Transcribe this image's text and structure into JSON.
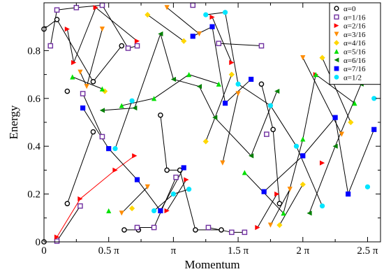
{
  "chart_data": {
    "type": "scatter",
    "title": "",
    "xlabel": "Momentum",
    "ylabel": "Energy",
    "xlim": [
      0,
      2.6
    ],
    "ylim": [
      0,
      1.0
    ],
    "x_unit": "pi",
    "x_ticks": [
      0,
      0.5,
      1,
      1.5,
      2,
      2.5
    ],
    "x_tick_labels": [
      "0",
      "0.5 π",
      "π",
      "1.5 π",
      "2 π",
      "2.5 π"
    ],
    "y_ticks": [
      0,
      0.2,
      0.4,
      0.6,
      0.8
    ],
    "y_tick_labels": [
      "0",
      "0.2",
      "0.4",
      "0.6",
      "0.8"
    ],
    "grid": false,
    "legend_position": "top-right",
    "series": [
      {
        "name": "α=0",
        "marker": "circle-open",
        "color": "#000000",
        "points": [
          [
            0,
            0
          ],
          [
            0,
            0.89
          ],
          [
            0.1,
            0.93
          ],
          [
            0.38,
            0.67
          ],
          [
            0.6,
            0.82
          ],
          [
            0.18,
            0.63
          ],
          [
            0.18,
            0.16
          ],
          [
            0.38,
            0.46
          ],
          [
            0.62,
            0.05
          ],
          [
            0.73,
            0.05
          ],
          [
            0.9,
            0.53
          ],
          [
            0.95,
            0.3
          ],
          [
            1.05,
            0.3
          ],
          [
            1.17,
            0.05
          ],
          [
            1.37,
            0.05
          ],
          [
            1.68,
            0.66
          ],
          [
            1.77,
            0.47
          ],
          [
            1.82,
            0.16
          ]
        ]
      },
      {
        "name": "α=1/16",
        "marker": "square-open",
        "color": "#7030a0",
        "points": [
          [
            0.05,
            0.82
          ],
          [
            0.1,
            0.97
          ],
          [
            0.25,
            0.98
          ],
          [
            0.45,
            0.99
          ],
          [
            0.65,
            0.81
          ],
          [
            0.72,
            0.82
          ],
          [
            0.3,
            0.62
          ],
          [
            0.45,
            0.44
          ],
          [
            0.1,
            0.003
          ],
          [
            0.28,
            0.15
          ],
          [
            0.72,
            0.06
          ],
          [
            0.85,
            0.06
          ],
          [
            1.02,
            0.27
          ],
          [
            1.15,
            0.99
          ],
          [
            1.27,
            0.06
          ],
          [
            1.45,
            0.04
          ],
          [
            1.55,
            0.04
          ],
          [
            1.72,
            0.45
          ],
          [
            1.68,
            0.82
          ],
          [
            1.35,
            0.83
          ]
        ]
      },
      {
        "name": "α=2/16",
        "marker": "triangle-right",
        "color": "#ff0000",
        "points": [
          [
            0.1,
            0.02
          ],
          [
            0.28,
            0.18
          ],
          [
            0.55,
            0.3
          ],
          [
            0.7,
            0.36
          ],
          [
            0.18,
            0.89
          ],
          [
            0.23,
            0.75
          ],
          [
            0.4,
            0.98
          ],
          [
            0.72,
            0.84
          ],
          [
            0.95,
            0.13
          ],
          [
            1.1,
            0.26
          ],
          [
            1.3,
            0.94
          ],
          [
            1.45,
            0.75
          ],
          [
            1.65,
            0.06
          ],
          [
            1.8,
            0.2
          ],
          [
            2.1,
            0.7
          ],
          [
            2.15,
            0.33
          ]
        ]
      },
      {
        "name": "α=3/16",
        "marker": "triangle-down",
        "color": "#ff8c00",
        "points": [
          [
            0.28,
            0.71
          ],
          [
            0.33,
            0.65
          ],
          [
            0.45,
            0.89
          ],
          [
            0.6,
            0.12
          ],
          [
            0.8,
            0.23
          ],
          [
            0.95,
            0.98
          ],
          [
            1.2,
            0.87
          ],
          [
            1.38,
            0.33
          ],
          [
            1.5,
            0.62
          ],
          [
            1.75,
            0.07
          ],
          [
            1.9,
            0.22
          ],
          [
            2.0,
            0.77
          ],
          [
            2.3,
            0.45
          ]
        ]
      },
      {
        "name": "α=4/16",
        "marker": "diamond",
        "color": "#ffd700",
        "points": [
          [
            0.47,
            0.63
          ],
          [
            0.68,
            0.14
          ],
          [
            0.8,
            0.95
          ],
          [
            1.08,
            0.84
          ],
          [
            1.25,
            0.42
          ],
          [
            1.45,
            0.7
          ],
          [
            1.82,
            0.07
          ],
          [
            2.0,
            0.24
          ],
          [
            2.15,
            0.77
          ],
          [
            2.37,
            0.5
          ]
        ]
      },
      {
        "name": "α=5/16",
        "marker": "triangle-up",
        "color": "#00e000",
        "points": [
          [
            0.22,
            0.69
          ],
          [
            0.45,
            0.64
          ],
          [
            0.5,
            0.13
          ],
          [
            0.6,
            0.57
          ],
          [
            0.85,
            0.6
          ],
          [
            1.12,
            0.7
          ],
          [
            1.35,
            0.66
          ],
          [
            1.55,
            0.29
          ],
          [
            1.85,
            0.12
          ],
          [
            2.0,
            0.43
          ],
          [
            2.1,
            0.7
          ],
          [
            2.4,
            0.58
          ]
        ]
      },
      {
        "name": "α=6/16",
        "marker": "triangle-left",
        "color": "#008000",
        "points": [
          [
            0.45,
            0.55
          ],
          [
            0.7,
            0.56
          ],
          [
            0.9,
            0.87
          ],
          [
            1.0,
            0.68
          ],
          [
            1.2,
            0.65
          ],
          [
            1.32,
            0.52
          ],
          [
            1.6,
            0.36
          ],
          [
            1.8,
            0.63
          ],
          [
            2.05,
            0.12
          ],
          [
            2.25,
            0.4
          ],
          [
            2.45,
            0.66
          ]
        ]
      },
      {
        "name": "α=7/16",
        "marker": "square",
        "color": "#0000ff",
        "points": [
          [
            0.3,
            0.56
          ],
          [
            0.5,
            0.39
          ],
          [
            0.72,
            0.26
          ],
          [
            0.9,
            0.13
          ],
          [
            1.08,
            0.31
          ],
          [
            1.15,
            0.86
          ],
          [
            1.3,
            0.9
          ],
          [
            1.4,
            0.58
          ],
          [
            1.6,
            0.68
          ],
          [
            1.7,
            0.21
          ],
          [
            2.0,
            0.36
          ],
          [
            2.25,
            0.52
          ],
          [
            2.35,
            0.2
          ],
          [
            2.55,
            0.47
          ]
        ]
      },
      {
        "name": "α=1/2",
        "marker": "circle",
        "color": "#00e5ff",
        "points": [
          [
            0.55,
            0.39
          ],
          [
            0.68,
            0.59
          ],
          [
            0.85,
            0.13
          ],
          [
            1.0,
            0.2
          ],
          [
            1.12,
            0.22
          ],
          [
            1.25,
            0.95
          ],
          [
            1.4,
            0.96
          ],
          [
            1.5,
            0.66
          ],
          [
            1.75,
            0.57
          ],
          [
            1.95,
            0.4
          ],
          [
            2.15,
            0.15
          ],
          [
            2.5,
            0.23
          ],
          [
            2.55,
            0.6
          ]
        ]
      }
    ]
  }
}
